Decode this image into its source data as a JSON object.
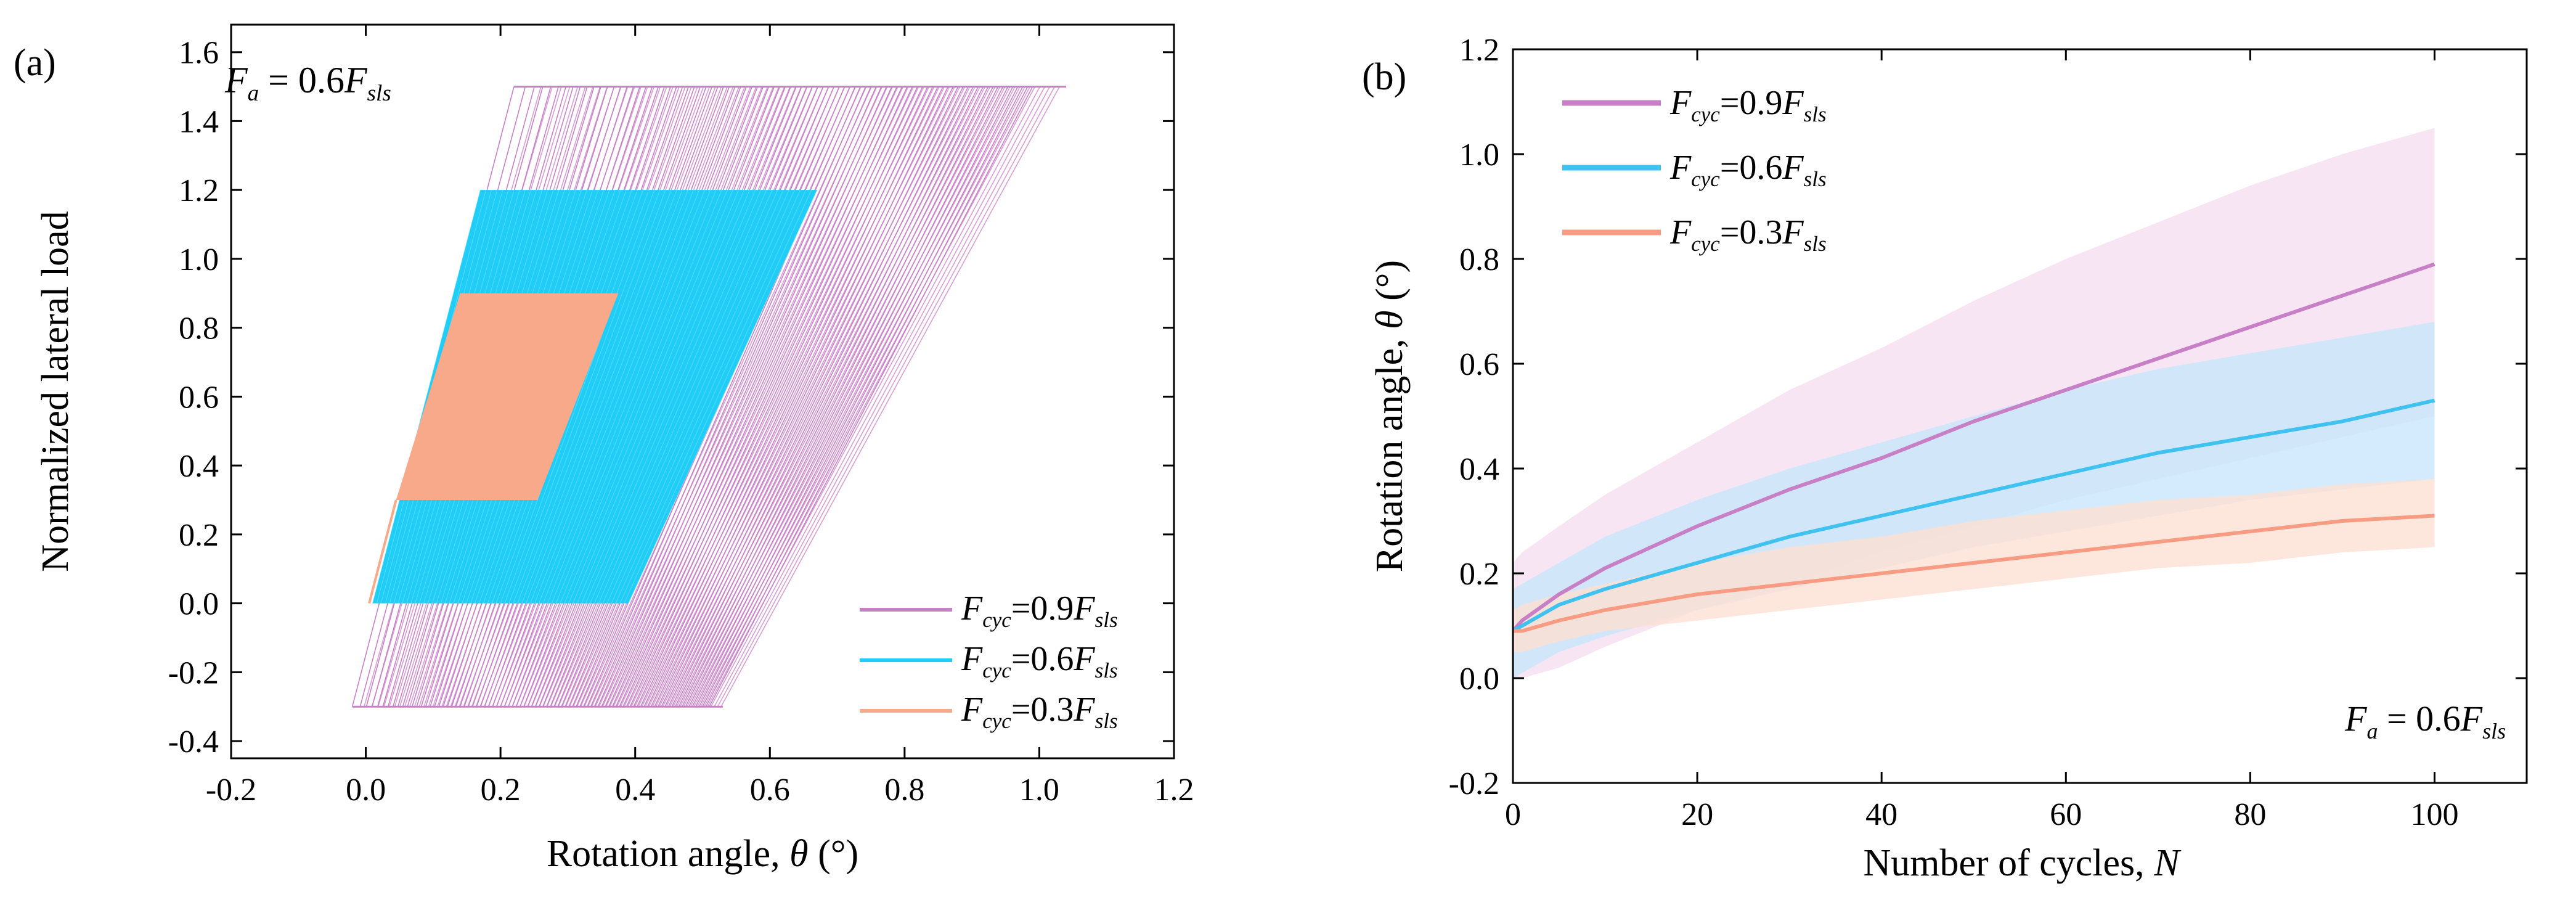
{
  "chart_data": [
    {
      "panel_label": "(a)",
      "type": "line",
      "title": "",
      "xlabel": "Rotation angle, θ (°)",
      "ylabel": "Normalized lateral load",
      "xlim": [
        -0.2,
        1.2
      ],
      "ylim": [
        -0.45,
        1.68
      ],
      "xticks": [
        -0.2,
        0.0,
        0.2,
        0.4,
        0.6,
        0.8,
        1.0,
        1.2
      ],
      "xtick_labels": [
        "-0.2",
        "0.0",
        "0.2",
        "0.4",
        "0.6",
        "0.8",
        "1.0",
        "1.2"
      ],
      "yticks": [
        -0.4,
        -0.2,
        0.0,
        0.2,
        0.4,
        0.6,
        0.8,
        1.0,
        1.2,
        1.4,
        1.6
      ],
      "ytick_labels": [
        "-0.4",
        "-0.2",
        "0.0",
        "0.2",
        "0.4",
        "0.6",
        "0.8",
        "1.0",
        "1.2",
        "1.4",
        "1.6"
      ],
      "annotation": {
        "base": "F",
        "sub": "a",
        "mid": " = 0.6",
        "base2": "F",
        "sub2": "sls"
      },
      "legend_position": "bottom-right",
      "series": [
        {
          "name": "Fcyc=0.9Fsls",
          "label": {
            "base": "F",
            "sub": "cyc",
            "mid": "=0.9",
            "base2": "F",
            "sub2": "sls"
          },
          "color": "#c77fc6",
          "load_range": [
            -0.3,
            1.5
          ],
          "start_left_angle": -0.02,
          "end_left_angle": 0.51,
          "loop_width_at_bottom": 0.05,
          "upper_left_start": 0.22,
          "upper_left_end": 0.75,
          "upper_right_end": 1.04,
          "lower_right_end": 0.53,
          "cycles": 100
        },
        {
          "name": "Fcyc=0.6Fsls",
          "label": {
            "base": "F",
            "sub": "cyc",
            "mid": "=0.6",
            "base2": "F",
            "sub2": "sls"
          },
          "color": "#1fcdf7",
          "load_range": [
            0.0,
            1.2
          ],
          "start_left_angle": 0.01,
          "lower_right_end": 0.39,
          "upper_left_start": 0.17,
          "upper_right_end": 0.67,
          "cycles": 100
        },
        {
          "name": "Fcyc=0.3Fsls",
          "label": {
            "base": "F",
            "sub": "cyc",
            "mid": "=0.3",
            "base2": "F",
            "sub2": "sls"
          },
          "color": "#f7a98a",
          "load_range": [
            0.3,
            0.9
          ],
          "start_left_angle": 0.045,
          "lower_right_end": 0.255,
          "upper_left_start": 0.14,
          "upper_right_end": 0.375,
          "cycles": 100
        }
      ]
    },
    {
      "panel_label": "(b)",
      "type": "line",
      "title": "",
      "xlabel": "Number of cycles, N",
      "ylabel": "Rotation angle, θ (°)",
      "xlim": [
        0,
        110
      ],
      "ylim": [
        -0.2,
        1.2
      ],
      "xticks": [
        0,
        20,
        40,
        60,
        80,
        100
      ],
      "xtick_labels": [
        "0",
        "20",
        "40",
        "60",
        "80",
        "100"
      ],
      "yticks": [
        -0.2,
        0.0,
        0.2,
        0.4,
        0.6,
        0.8,
        1.0,
        1.2
      ],
      "ytick_labels": [
        "-0.2",
        "0.0",
        "0.2",
        "0.4",
        "0.6",
        "0.8",
        "1.0",
        "1.2"
      ],
      "annotation": {
        "base": "F",
        "sub": "a",
        "mid": " = 0.6",
        "base2": "F",
        "sub2": "sls"
      },
      "legend_position": "top-left",
      "x": [
        0,
        1,
        5,
        10,
        20,
        30,
        40,
        50,
        60,
        70,
        80,
        90,
        100
      ],
      "series": [
        {
          "name": "Fcyc=0.9Fsls",
          "label": {
            "base": "F",
            "sub": "cyc",
            "mid": "=0.9",
            "base2": "F",
            "sub2": "sls"
          },
          "color": "#c77fc6",
          "band_color": "#f6dff0",
          "values": [
            0.09,
            0.11,
            0.16,
            0.21,
            0.29,
            0.36,
            0.42,
            0.49,
            0.55,
            0.61,
            0.67,
            0.73,
            0.79
          ],
          "band_upper": [
            0.22,
            0.24,
            0.29,
            0.35,
            0.45,
            0.55,
            0.63,
            0.72,
            0.8,
            0.87,
            0.94,
            1.0,
            1.05
          ],
          "band_lower": [
            0.0,
            0.0,
            0.02,
            0.06,
            0.13,
            0.18,
            0.24,
            0.29,
            0.34,
            0.38,
            0.42,
            0.46,
            0.5
          ]
        },
        {
          "name": "Fcyc=0.6Fsls",
          "label": {
            "base": "F",
            "sub": "cyc",
            "mid": "=0.6",
            "base2": "F",
            "sub2": "sls"
          },
          "color": "#3fc2ef",
          "band_color": "#c8e6fb",
          "values": [
            0.09,
            0.1,
            0.14,
            0.17,
            0.22,
            0.27,
            0.31,
            0.35,
            0.39,
            0.43,
            0.46,
            0.49,
            0.53
          ],
          "band_upper": [
            0.17,
            0.18,
            0.22,
            0.27,
            0.34,
            0.4,
            0.45,
            0.5,
            0.55,
            0.59,
            0.62,
            0.65,
            0.68
          ],
          "band_lower": [
            0.0,
            0.01,
            0.05,
            0.08,
            0.13,
            0.17,
            0.21,
            0.25,
            0.28,
            0.31,
            0.34,
            0.36,
            0.38
          ]
        },
        {
          "name": "Fcyc=0.3Fsls",
          "label": {
            "base": "F",
            "sub": "cyc",
            "mid": "=0.3",
            "base2": "F",
            "sub2": "sls"
          },
          "color": "#f79b83",
          "band_color": "#fde0d2",
          "values": [
            0.09,
            0.09,
            0.11,
            0.13,
            0.16,
            0.18,
            0.2,
            0.22,
            0.24,
            0.26,
            0.28,
            0.3,
            0.31
          ],
          "band_upper": [
            0.13,
            0.14,
            0.16,
            0.18,
            0.22,
            0.25,
            0.27,
            0.3,
            0.32,
            0.34,
            0.35,
            0.37,
            0.38
          ],
          "band_lower": [
            0.05,
            0.05,
            0.07,
            0.09,
            0.11,
            0.13,
            0.15,
            0.17,
            0.19,
            0.21,
            0.22,
            0.24,
            0.25
          ]
        }
      ]
    }
  ]
}
